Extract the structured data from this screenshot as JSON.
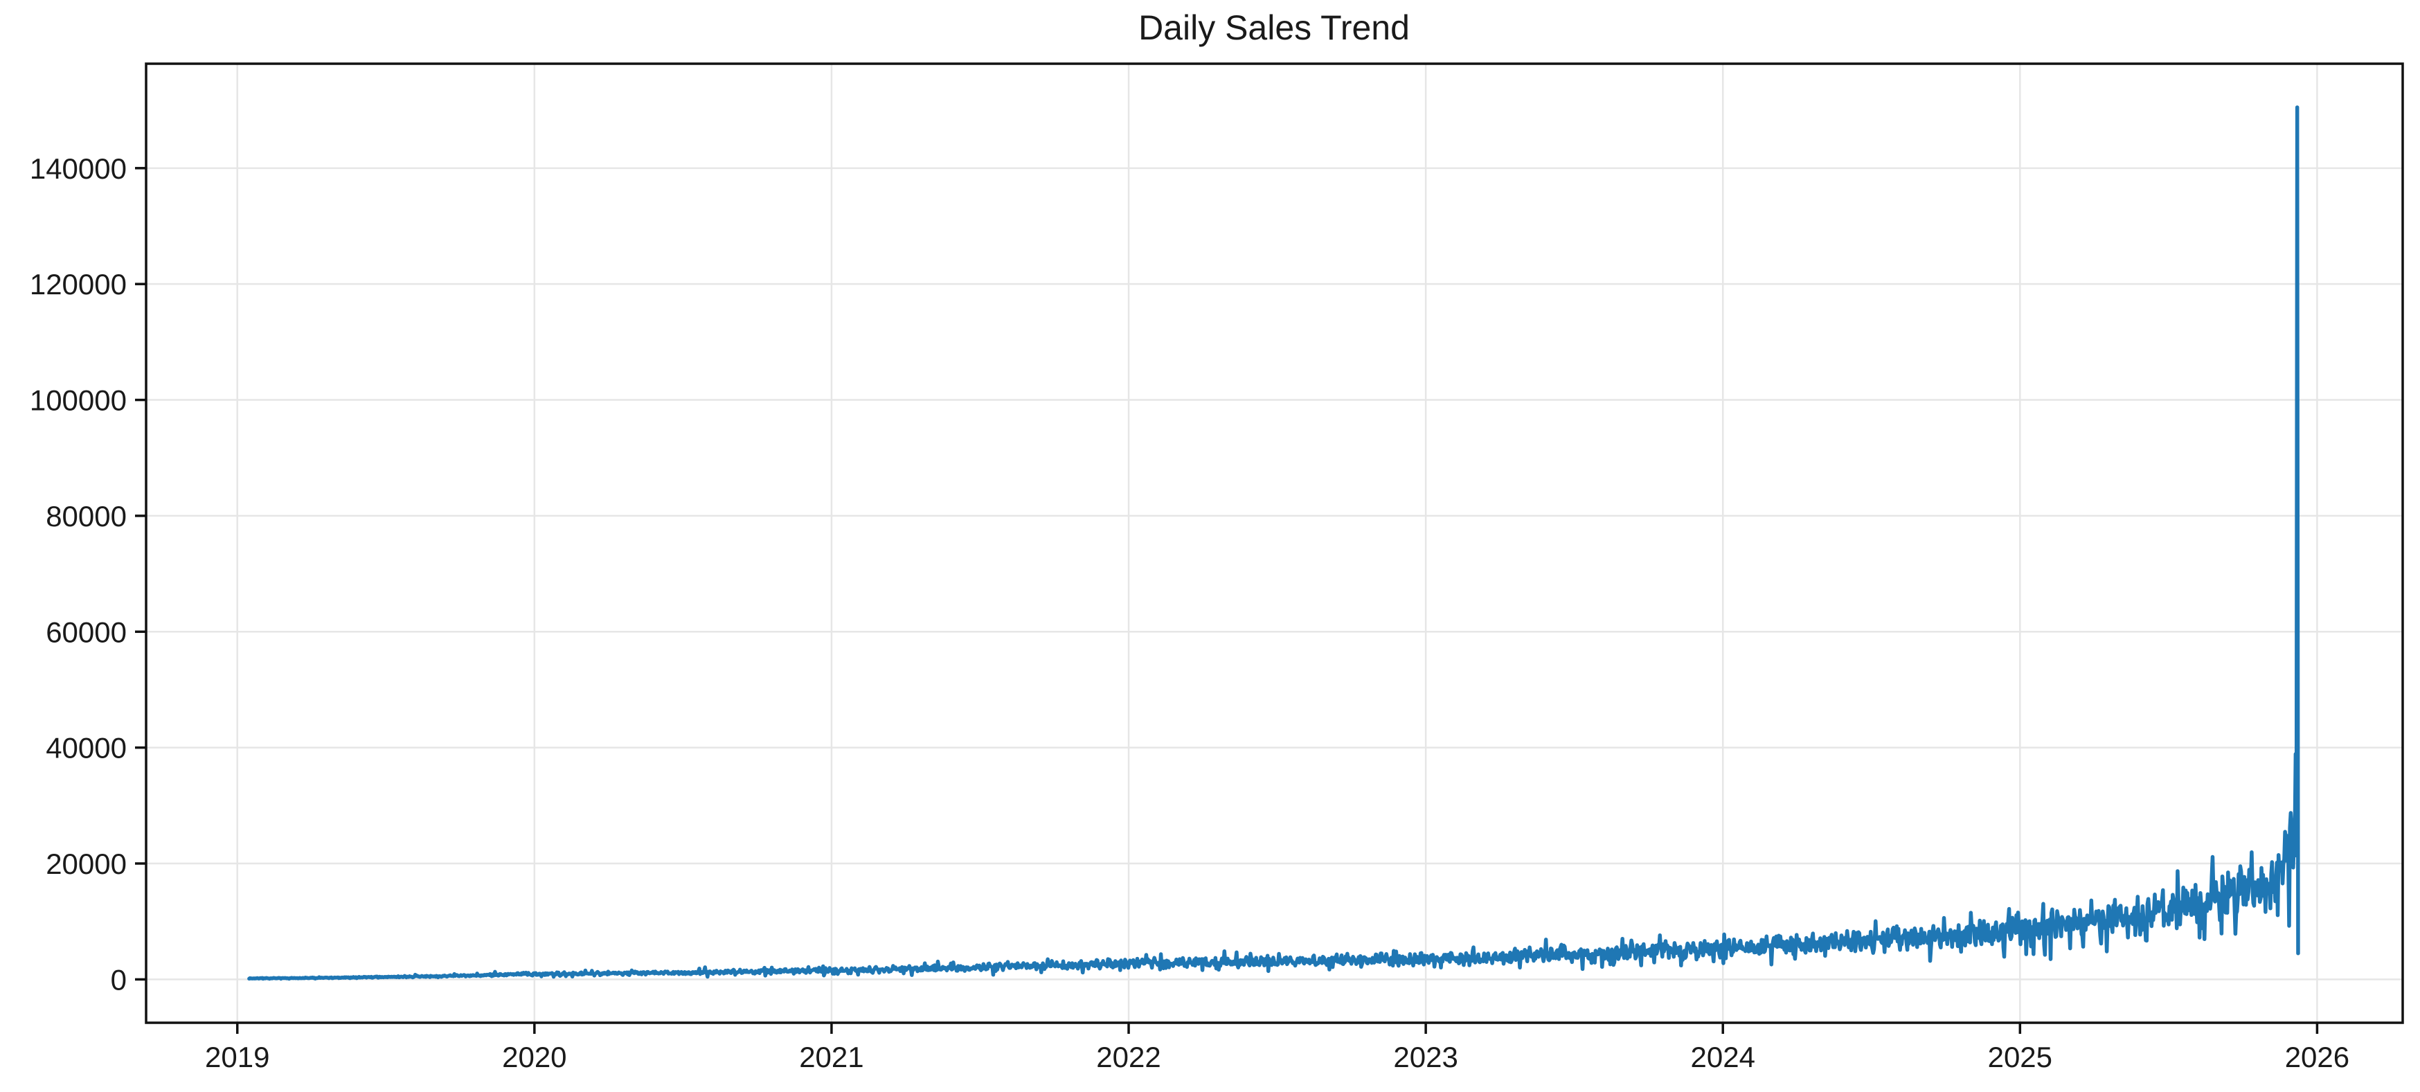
{
  "page": {
    "window_title": "Daily Sales Trend"
  },
  "chart_data": {
    "type": "line",
    "title": "Daily Sales Trend",
    "xlabel": "",
    "ylabel": "",
    "grid": true,
    "legend": "none",
    "background_color": "#ffffff",
    "grid_color": "#e6e6e6",
    "spine_color": "#111111",
    "text_color": "#1a1a1a",
    "x_axis": {
      "tick_labels": [
        "2019",
        "2020",
        "2021",
        "2022",
        "2023",
        "2024",
        "2025",
        "2026"
      ],
      "tick_values": [
        2019,
        2020,
        2021,
        2022,
        2023,
        2024,
        2025,
        2026
      ],
      "range_decimal_years": [
        2018.693,
        2026.288
      ]
    },
    "y_axis": {
      "tick_labels": [
        "0",
        "20000",
        "40000",
        "60000",
        "80000",
        "100000",
        "120000",
        "140000"
      ],
      "tick_values": [
        0,
        20000,
        40000,
        60000,
        80000,
        100000,
        120000,
        140000
      ],
      "range": [
        -7483,
        158023
      ]
    },
    "series": [
      {
        "name": "daily sales",
        "color": "#1f77b4",
        "line_width": 5.5,
        "cadence": "daily",
        "points_per_year": 365,
        "start_decimal_year": 2019.04,
        "trend_end_decimal_year": 2025.932,
        "trend_anchor_points": [
          {
            "x": 2019.04,
            "mean": 170
          },
          {
            "x": 2019.25,
            "mean": 260
          },
          {
            "x": 2019.5,
            "mean": 400
          },
          {
            "x": 2019.75,
            "mean": 640
          },
          {
            "x": 2020.0,
            "mean": 900
          },
          {
            "x": 2020.5,
            "mean": 1150
          },
          {
            "x": 2021.0,
            "mean": 1550
          },
          {
            "x": 2021.5,
            "mean": 2100
          },
          {
            "x": 2022.0,
            "mean": 2750
          },
          {
            "x": 2022.5,
            "mean": 3100
          },
          {
            "x": 2023.0,
            "mean": 3450
          },
          {
            "x": 2023.5,
            "mean": 4350
          },
          {
            "x": 2024.0,
            "mean": 5350
          },
          {
            "x": 2024.5,
            "mean": 6700
          },
          {
            "x": 2025.0,
            "mean": 8500
          },
          {
            "x": 2025.4,
            "mean": 11000
          },
          {
            "x": 2025.75,
            "mean": 15000
          },
          {
            "x": 2025.87,
            "mean": 18000
          },
          {
            "x": 2025.932,
            "mean": 24500
          }
        ],
        "noise": {
          "base_frac": 0.2,
          "secondary_frac": 0.1,
          "wiggle_frac": 0.08,
          "rare_event_threshold": 0.93,
          "up_spike_mult": 1.35,
          "down_spike_mult": 0.55,
          "min_value": 40
        },
        "terminal_spike": {
          "x": 2025.933,
          "peak_value": 150500,
          "drop_x": 2025.936,
          "drop_to_value": 4500
        }
      }
    ]
  }
}
